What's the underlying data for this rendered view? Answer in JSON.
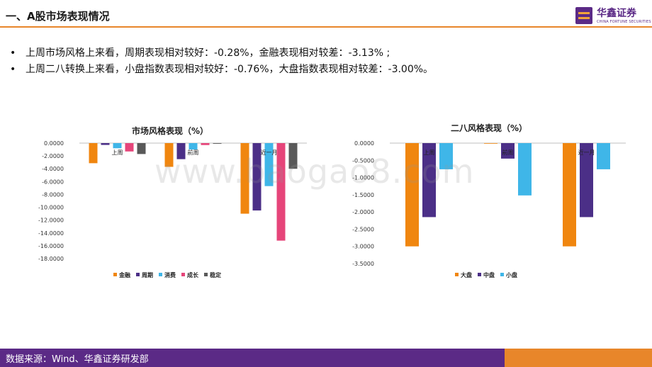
{
  "header": {
    "title": "一、A股市场表现情况",
    "logo_cn": "华鑫证券",
    "logo_en": "CHINA FORTUNE SECURITIES"
  },
  "bullets": [
    "上周市场风格上来看，周期表现相对较好：-0.28%，金融表现相对较差：-3.13% ;",
    "上周二八转换上来看，小盘指数表现相对较好：-0.76%，大盘指数表现相对较差：-3.00%。"
  ],
  "watermark": "www.baogao8.com",
  "footer": {
    "source": "数据来源：Wind、华鑫证券研发部"
  },
  "colors": {
    "accent": "#e8862a",
    "brand": "#5b2a86",
    "金融": "#f0860f",
    "周期": "#4b2f87",
    "消费": "#3fb6e8",
    "成长": "#e6457a",
    "稳定": "#595959",
    "大盘": "#f0860f",
    "中盘": "#4b2f87",
    "小盘": "#3fb6e8"
  },
  "chart_data": [
    {
      "type": "bar",
      "title": "市场风格表现（%）",
      "categories": [
        "上周",
        "前周",
        "近一月"
      ],
      "series": [
        {
          "name": "金融",
          "values": [
            -3.13,
            -3.7,
            -11.0
          ]
        },
        {
          "name": "周期",
          "values": [
            -0.28,
            -2.5,
            -10.5
          ]
        },
        {
          "name": "消费",
          "values": [
            -0.8,
            -1.0,
            -6.7
          ]
        },
        {
          "name": "成长",
          "values": [
            -1.3,
            -0.3,
            -15.2
          ]
        },
        {
          "name": "稳定",
          "values": [
            -1.7,
            -0.1,
            -4.0
          ]
        }
      ],
      "yticks": [
        "0.0000",
        "-2.0000",
        "-4.0000",
        "-6.0000",
        "-8.0000",
        "-10.0000",
        "-12.0000",
        "-14.0000",
        "-16.0000",
        "-18.0000"
      ],
      "ylim": [
        -18,
        0
      ],
      "legend": "bottom"
    },
    {
      "type": "bar",
      "title": "二八风格表现（%）",
      "categories": [
        "上周",
        "前周",
        "近一月"
      ],
      "series": [
        {
          "name": "大盘",
          "values": [
            -3.0,
            0.0,
            -3.0
          ]
        },
        {
          "name": "中盘",
          "values": [
            -2.15,
            -0.45,
            -2.15
          ]
        },
        {
          "name": "小盘",
          "values": [
            -0.76,
            -1.52,
            -0.76
          ]
        }
      ],
      "yticks": [
        "0.0000",
        "-0.5000",
        "-1.0000",
        "-1.5000",
        "-2.0000",
        "-2.5000",
        "-3.0000",
        "-3.5000"
      ],
      "ylim": [
        -3.5,
        0
      ],
      "legend": "bottom"
    }
  ]
}
